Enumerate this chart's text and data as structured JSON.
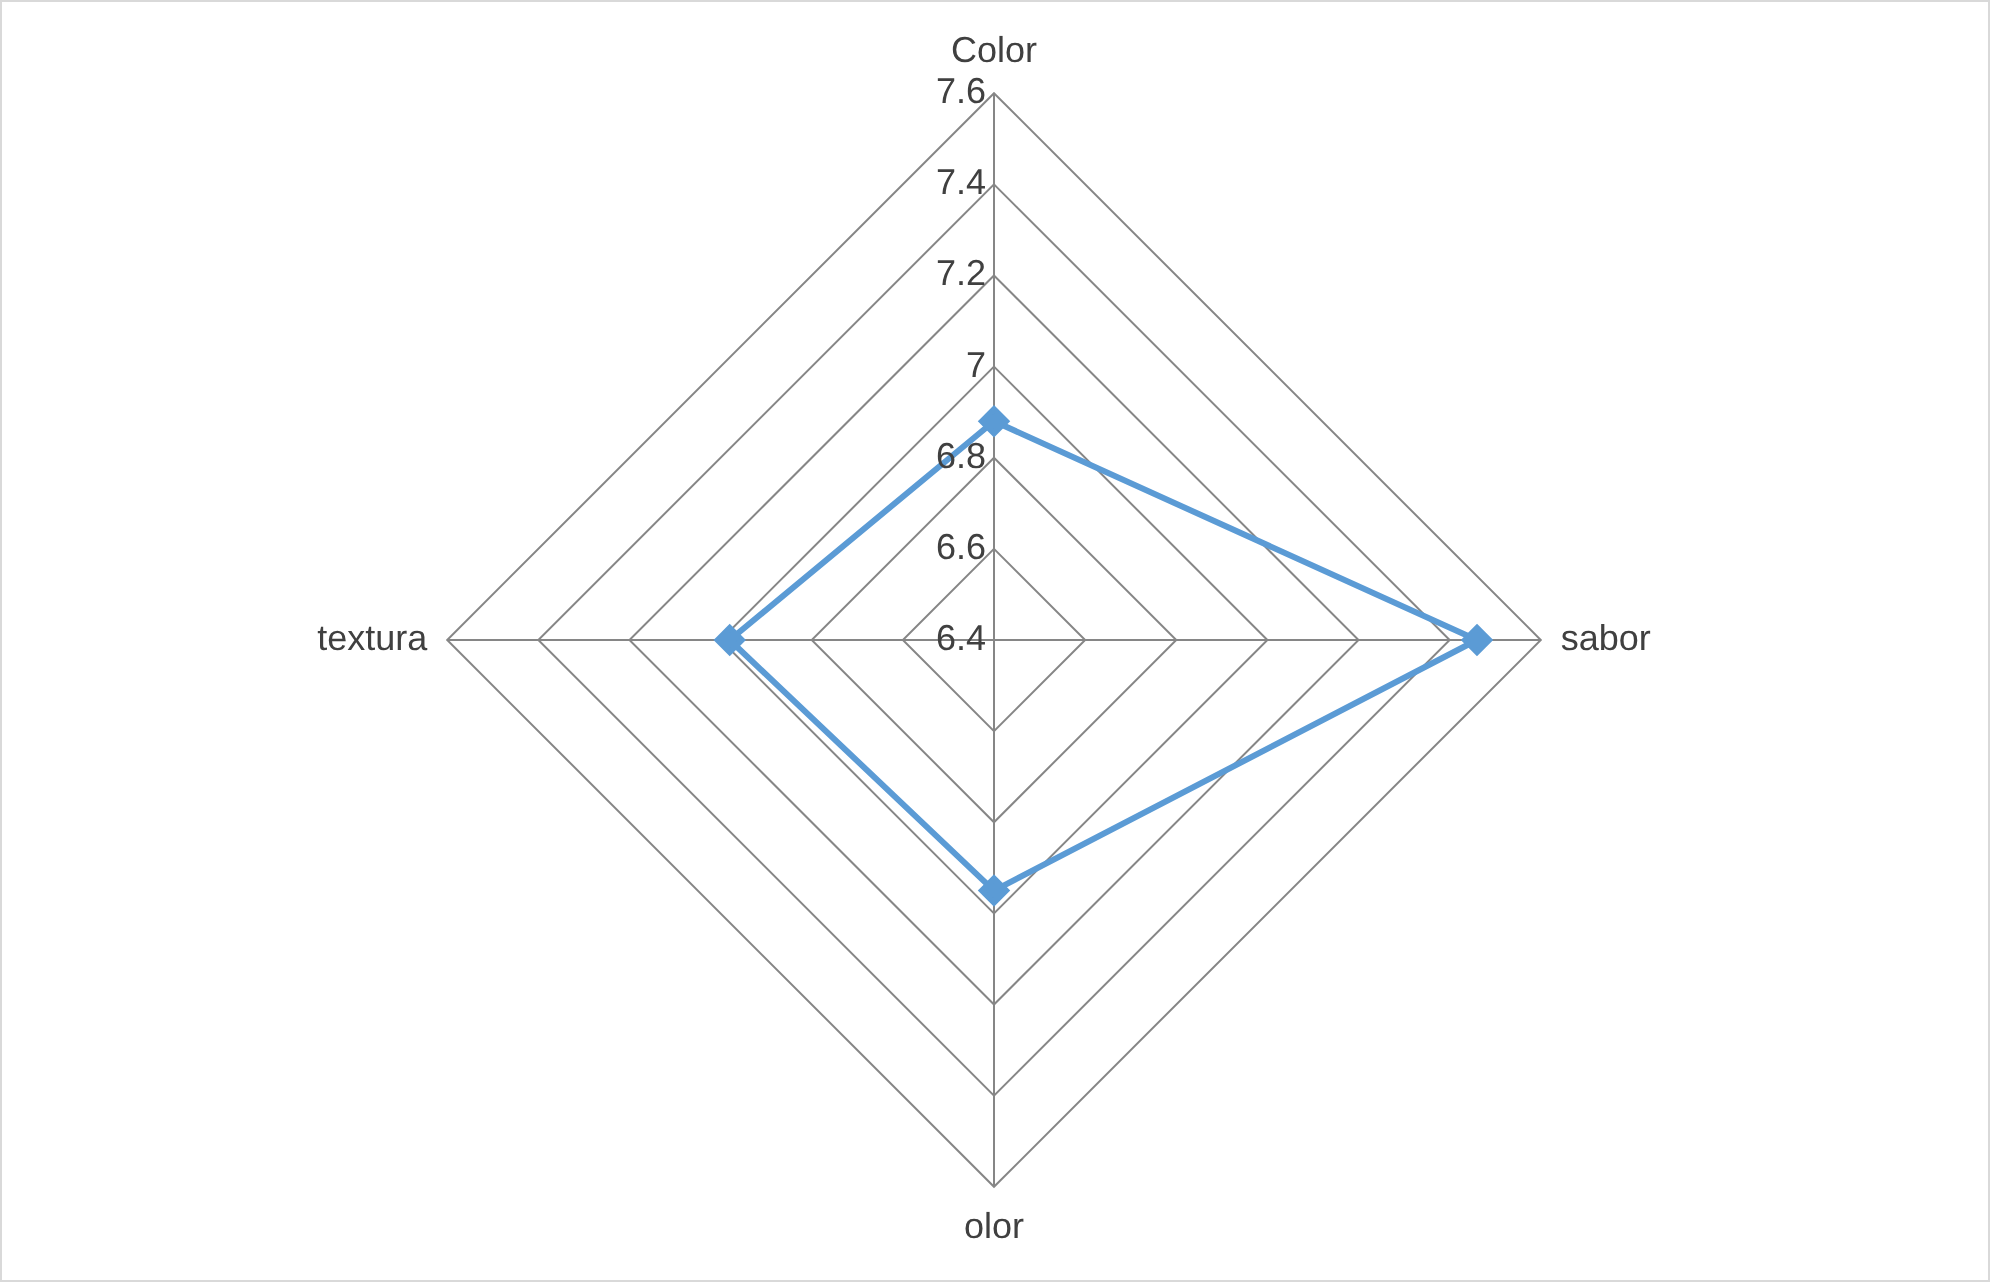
{
  "chart_data": {
    "type": "radar",
    "categories": [
      "Color",
      "sabor",
      "olor",
      "textura"
    ],
    "series": [
      {
        "color": "#5b9bd5",
        "values": [
          6.88,
          7.46,
          6.95,
          6.98
        ]
      }
    ],
    "ylim": [
      6.4,
      7.6
    ],
    "yticks": [
      6.4,
      6.6,
      6.8,
      7,
      7.2,
      7.4,
      7.6
    ],
    "grid": true,
    "legend": false,
    "marker": "diamond"
  }
}
